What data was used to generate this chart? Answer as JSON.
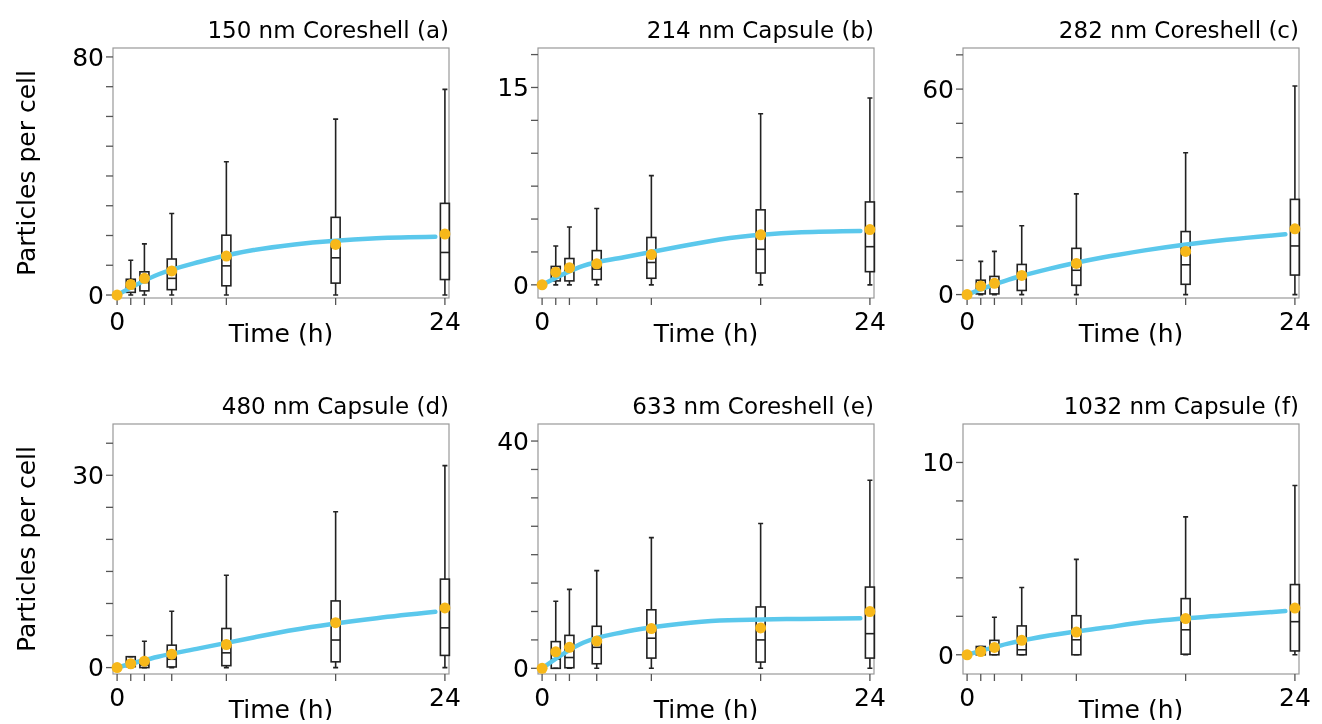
{
  "chart_data": [
    {
      "type": "box",
      "title": "150 nm Coreshell (a)",
      "xlabel": "Time (h)",
      "ylabel": "Particles per cell",
      "xlim": [
        -0.3,
        24.3
      ],
      "ylim": [
        -1,
        83
      ],
      "xticks": [
        {
          "value": 0,
          "label": "0"
        },
        {
          "value": 1,
          "label": null
        },
        {
          "value": 2,
          "label": null
        },
        {
          "value": 4,
          "label": null
        },
        {
          "value": 8,
          "label": null
        },
        {
          "value": 16,
          "label": null
        },
        {
          "value": 24,
          "label": "24"
        }
      ],
      "yticks": [
        {
          "value": 0,
          "label": "0"
        },
        {
          "value": 10,
          "label": null
        },
        {
          "value": 20,
          "label": null
        },
        {
          "value": 30,
          "label": null
        },
        {
          "value": 40,
          "label": null
        },
        {
          "value": 50,
          "label": null
        },
        {
          "value": 60,
          "label": null
        },
        {
          "value": 70,
          "label": null
        },
        80
      ],
      "series": [
        {
          "type": "box",
          "color": "#222222",
          "x": [
            1,
            2,
            4,
            8,
            16,
            24
          ],
          "boxes": [
            {
              "low": 0,
              "q1": 0.9,
              "median": 2.2,
              "q3": 5.3,
              "high": 11.7,
              "mean": 3.5
            },
            {
              "low": 0,
              "q1": 1.4,
              "median": 4.2,
              "q3": 7.8,
              "high": 17.2,
              "mean": 5.6
            },
            {
              "low": 0,
              "q1": 1.8,
              "median": 5.6,
              "q3": 12.1,
              "high": 27.4,
              "mean": 8.1
            },
            {
              "low": 0,
              "q1": 3.1,
              "median": 9.8,
              "q3": 20.1,
              "high": 44.8,
              "mean": 13.1
            },
            {
              "low": 0,
              "q1": 4,
              "median": 12.5,
              "q3": 26.1,
              "high": 59.1,
              "mean": 17
            },
            {
              "low": 0,
              "q1": 5.2,
              "median": 14.3,
              "q3": 30.8,
              "high": 69.1,
              "mean": 20.5
            }
          ]
        },
        {
          "type": "line",
          "color": "#5bc8ec",
          "x": [
            0,
            3,
            6,
            10,
            13,
            19,
            23.3
          ],
          "values": [
            0,
            6.9,
            11.1,
            15.1,
            17,
            19.1,
            19.6
          ]
        },
        {
          "type": "scatter",
          "color": "#f7b81a",
          "marker": "circle",
          "x": [
            0
          ],
          "values": [
            0
          ]
        }
      ]
    },
    {
      "type": "box",
      "title": "214 nm Capsule (b)",
      "xlabel": "Time (h)",
      "xlim": [
        -0.3,
        24.3
      ],
      "ylim": [
        -1,
        18
      ],
      "xticks": [
        {
          "value": 0,
          "label": "0"
        },
        {
          "value": 1,
          "label": null
        },
        {
          "value": 2,
          "label": null
        },
        {
          "value": 4,
          "label": null
        },
        {
          "value": 8,
          "label": null
        },
        {
          "value": 16,
          "label": null
        },
        {
          "value": 24,
          "label": "24"
        }
      ],
      "yticks": [
        {
          "value": 0,
          "label": "0"
        },
        {
          "value": 2.5,
          "label": null
        },
        {
          "value": 5,
          "label": null
        },
        {
          "value": 7.5,
          "label": null
        },
        {
          "value": 10,
          "label": null
        },
        {
          "value": 12.5,
          "label": null
        },
        15,
        {
          "value": 17.5,
          "label": null
        }
      ],
      "series": [
        {
          "type": "box",
          "color": "#222222",
          "x": [
            1,
            2,
            4,
            8,
            16,
            24
          ],
          "boxes": [
            {
              "low": 0,
              "q1": 0.3,
              "median": 1,
              "q3": 1.4,
              "high": 2.95,
              "mean": 0.96
            },
            {
              "low": 0,
              "q1": 0.3,
              "median": 1.2,
              "q3": 2,
              "high": 4.4,
              "mean": 1.3
            },
            {
              "low": 0,
              "q1": 0.4,
              "median": 1.2,
              "q3": 2.6,
              "high": 5.8,
              "mean": 1.6
            },
            {
              "low": 0,
              "q1": 0.5,
              "median": 1.7,
              "q3": 3.6,
              "high": 8.3,
              "mean": 2.3
            },
            {
              "low": 0,
              "q1": 0.9,
              "median": 2.7,
              "q3": 5.7,
              "high": 13,
              "mean": 3.8
            },
            {
              "low": 0,
              "q1": 1,
              "median": 2.9,
              "q3": 6.3,
              "high": 14.2,
              "mean": 4.2
            }
          ]
        },
        {
          "type": "line",
          "color": "#5bc8ec",
          "x": [
            0,
            3,
            6,
            10,
            13,
            19,
            23.3
          ],
          "values": [
            0,
            1.45,
            2.1,
            2.9,
            3.45,
            4,
            4.1
          ]
        },
        {
          "type": "scatter",
          "color": "#f7b81a",
          "marker": "circle",
          "x": [
            0
          ],
          "values": [
            0
          ]
        }
      ]
    },
    {
      "type": "box",
      "title": "282 nm Coreshell (c)",
      "xlabel": "Time (h)",
      "xlim": [
        -0.3,
        24.3
      ],
      "ylim": [
        -1,
        72
      ],
      "xticks": [
        {
          "value": 0,
          "label": "0"
        },
        {
          "value": 1,
          "label": null
        },
        {
          "value": 2,
          "label": null
        },
        {
          "value": 4,
          "label": null
        },
        {
          "value": 8,
          "label": null
        },
        {
          "value": 16,
          "label": null
        },
        {
          "value": 24,
          "label": "24"
        }
      ],
      "yticks": [
        {
          "value": 0,
          "label": "0"
        },
        {
          "value": 10,
          "label": null
        },
        {
          "value": 20,
          "label": null
        },
        {
          "value": 30,
          "label": null
        },
        {
          "value": 40,
          "label": null
        },
        {
          "value": 50,
          "label": null
        },
        60,
        {
          "value": 70,
          "label": null
        }
      ],
      "series": [
        {
          "type": "box",
          "color": "#222222",
          "x": [
            1,
            2,
            4,
            8,
            16,
            24
          ],
          "boxes": [
            {
              "low": 0,
              "q1": 0.2,
              "median": 1.7,
              "q3": 4.2,
              "high": 9.7,
              "mean": 2.5
            },
            {
              "low": 0,
              "q1": 0.2,
              "median": 2.2,
              "q3": 5.3,
              "high": 12.6,
              "mean": 3.3
            },
            {
              "low": 0,
              "q1": 1.2,
              "median": 4.7,
              "q3": 8.8,
              "high": 20.1,
              "mean": 5.6
            },
            {
              "low": 0,
              "q1": 2.7,
              "median": 7.1,
              "q3": 13.5,
              "high": 29.4,
              "mean": 9.1
            },
            {
              "low": 0,
              "q1": 3,
              "median": 8.7,
              "q3": 18.4,
              "high": 41.4,
              "mean": 12.6
            },
            {
              "low": 0,
              "q1": 5.7,
              "median": 14.2,
              "q3": 27.8,
              "high": 60.9,
              "mean": 19.2
            }
          ]
        },
        {
          "type": "line",
          "color": "#5bc8ec",
          "x": [
            0,
            3,
            6,
            10,
            13,
            19,
            23.3
          ],
          "values": [
            0,
            4.3,
            7.5,
            10.9,
            12.9,
            16,
            17.6
          ]
        },
        {
          "type": "scatter",
          "color": "#f7b81a",
          "marker": "circle",
          "x": [
            0
          ],
          "values": [
            0
          ]
        }
      ]
    },
    {
      "type": "box",
      "title": "480 nm Capsule (d)",
      "xlabel": "Time (h)",
      "ylabel": "Particles per cell",
      "xlim": [
        -0.3,
        24.3
      ],
      "ylim": [
        -1,
        38
      ],
      "xticks": [
        {
          "value": 0,
          "label": "0"
        },
        {
          "value": 1,
          "label": null
        },
        {
          "value": 2,
          "label": null
        },
        {
          "value": 4,
          "label": null
        },
        {
          "value": 8,
          "label": null
        },
        {
          "value": 16,
          "label": null
        },
        {
          "value": 24,
          "label": "24"
        }
      ],
      "yticks": [
        {
          "value": 0,
          "label": "0"
        },
        {
          "value": 5,
          "label": null
        },
        {
          "value": 10,
          "label": null
        },
        {
          "value": 15,
          "label": null
        },
        {
          "value": 20,
          "label": null
        },
        {
          "value": 25,
          "label": null
        },
        30,
        {
          "value": 35,
          "label": null
        }
      ],
      "series": [
        {
          "type": "box",
          "color": "#222222",
          "x": [
            1,
            2,
            4,
            8,
            16,
            24
          ],
          "boxes": [
            {
              "low": 0,
              "q1": 0.15,
              "median": 0.8,
              "q3": 1.7,
              "high": 1.7,
              "mean": 0.6
            },
            {
              "low": 0,
              "q1": 0,
              "median": 0.4,
              "q3": 0.9,
              "high": 4.1,
              "mean": 1
            },
            {
              "low": 0,
              "q1": 0.1,
              "median": 1.3,
              "q3": 3.5,
              "high": 8.8,
              "mean": 2.1
            },
            {
              "low": 0,
              "q1": 0.3,
              "median": 2.3,
              "q3": 6.1,
              "high": 14.4,
              "mean": 3.6
            },
            {
              "low": 0,
              "q1": 0.9,
              "median": 4.3,
              "q3": 10.4,
              "high": 24.3,
              "mean": 7
            },
            {
              "low": 0,
              "q1": 1.9,
              "median": 6.2,
              "q3": 13.8,
              "high": 31.5,
              "mean": 9.3
            }
          ]
        },
        {
          "type": "line",
          "color": "#5bc8ec",
          "x": [
            0,
            3,
            6,
            10,
            13,
            19,
            23.3
          ],
          "values": [
            0,
            1.7,
            3,
            4.7,
            5.9,
            7.7,
            8.7
          ]
        },
        {
          "type": "scatter",
          "color": "#f7b81a",
          "marker": "circle",
          "x": [
            0
          ],
          "values": [
            0
          ]
        }
      ]
    },
    {
      "type": "box",
      "title": "633 nm Coreshell (e)",
      "xlabel": "Time (h)",
      "xlim": [
        -0.3,
        24.3
      ],
      "ylim": [
        -1,
        43
      ],
      "xticks": [
        {
          "value": 0,
          "label": "0"
        },
        {
          "value": 1,
          "label": null
        },
        {
          "value": 2,
          "label": null
        },
        {
          "value": 4,
          "label": null
        },
        {
          "value": 8,
          "label": null
        },
        {
          "value": 16,
          "label": null
        },
        {
          "value": 24,
          "label": "24"
        }
      ],
      "yticks": [
        {
          "value": 0,
          "label": "0"
        },
        {
          "value": 5,
          "label": null
        },
        {
          "value": 10,
          "label": null
        },
        {
          "value": 15,
          "label": null
        },
        {
          "value": 20,
          "label": null
        },
        {
          "value": 25,
          "label": null
        },
        {
          "value": 30,
          "label": null
        },
        {
          "value": 35,
          "label": null
        },
        40
      ],
      "series": [
        {
          "type": "box",
          "color": "#222222",
          "x": [
            1,
            2,
            4,
            8,
            16,
            24
          ],
          "boxes": [
            {
              "low": 0,
              "q1": 0,
              "median": 1.6,
              "q3": 4.7,
              "high": 11.8,
              "mean": 2.9
            },
            {
              "low": 0,
              "q1": 0.1,
              "median": 1.9,
              "q3": 5.8,
              "high": 13.9,
              "mean": 3.7
            },
            {
              "low": 0,
              "q1": 0.8,
              "median": 3.7,
              "q3": 7.4,
              "high": 17.2,
              "mean": 4.8
            },
            {
              "low": 0,
              "q1": 1.8,
              "median": 5.3,
              "q3": 10.3,
              "high": 23,
              "mean": 7
            },
            {
              "low": 0,
              "q1": 1.1,
              "median": 5,
              "q3": 10.8,
              "high": 25.5,
              "mean": 7.1
            },
            {
              "low": 0,
              "q1": 1.8,
              "median": 6.1,
              "q3": 14.3,
              "high": 33.1,
              "mean": 10
            }
          ]
        },
        {
          "type": "line",
          "color": "#5bc8ec",
          "x": [
            0,
            3,
            6,
            10,
            13,
            19,
            23.3
          ],
          "values": [
            0,
            4.5,
            6.4,
            7.8,
            8.4,
            8.7,
            8.8
          ]
        },
        {
          "type": "scatter",
          "color": "#f7b81a",
          "marker": "circle",
          "x": [
            0
          ],
          "values": [
            0
          ]
        }
      ]
    },
    {
      "type": "box",
      "title": "1032 nm Capsule (f)",
      "xlabel": "Time (h)",
      "xlim": [
        -0.3,
        24.3
      ],
      "ylim": [
        -1,
        12
      ],
      "xticks": [
        {
          "value": 0,
          "label": "0"
        },
        {
          "value": 1,
          "label": null
        },
        {
          "value": 2,
          "label": null
        },
        {
          "value": 4,
          "label": null
        },
        {
          "value": 8,
          "label": null
        },
        {
          "value": 16,
          "label": null
        },
        {
          "value": 24,
          "label": "24"
        }
      ],
      "yticks": [
        {
          "value": 0,
          "label": "0"
        },
        {
          "value": 2,
          "label": null
        },
        {
          "value": 4,
          "label": null
        },
        {
          "value": 6,
          "label": null
        },
        {
          "value": 8,
          "label": null
        },
        10
      ],
      "series": [
        {
          "type": "box",
          "color": "#222222",
          "x": [
            1,
            2,
            4,
            8,
            16,
            24
          ],
          "boxes": [
            {
              "low": 0,
              "q1": 0,
              "median": 0.17,
              "q3": 0.43,
              "high": 0.43,
              "mean": 0.17
            },
            {
              "low": 0,
              "q1": 0,
              "median": 0.35,
              "q3": 0.75,
              "high": 1.95,
              "mean": 0.38
            },
            {
              "low": 0,
              "q1": 0,
              "median": 0.26,
              "q3": 1.5,
              "high": 3.5,
              "mean": 0.75
            },
            {
              "low": 0,
              "q1": 0,
              "median": 0.78,
              "q3": 2.03,
              "high": 4.96,
              "mean": 1.18
            },
            {
              "low": 0,
              "q1": 0.03,
              "median": 1.3,
              "q3": 2.92,
              "high": 7.17,
              "mean": 1.88
            },
            {
              "low": 0,
              "q1": 0.2,
              "median": 1.72,
              "q3": 3.65,
              "high": 8.8,
              "mean": 2.43
            }
          ]
        },
        {
          "type": "line",
          "color": "#5bc8ec",
          "x": [
            0,
            3,
            6,
            10,
            13,
            19,
            23.3
          ],
          "values": [
            0,
            0.58,
            1,
            1.4,
            1.7,
            2.05,
            2.27
          ]
        },
        {
          "type": "scatter",
          "color": "#f7b81a",
          "marker": "circle",
          "x": [
            0
          ],
          "values": [
            0
          ]
        }
      ]
    }
  ]
}
